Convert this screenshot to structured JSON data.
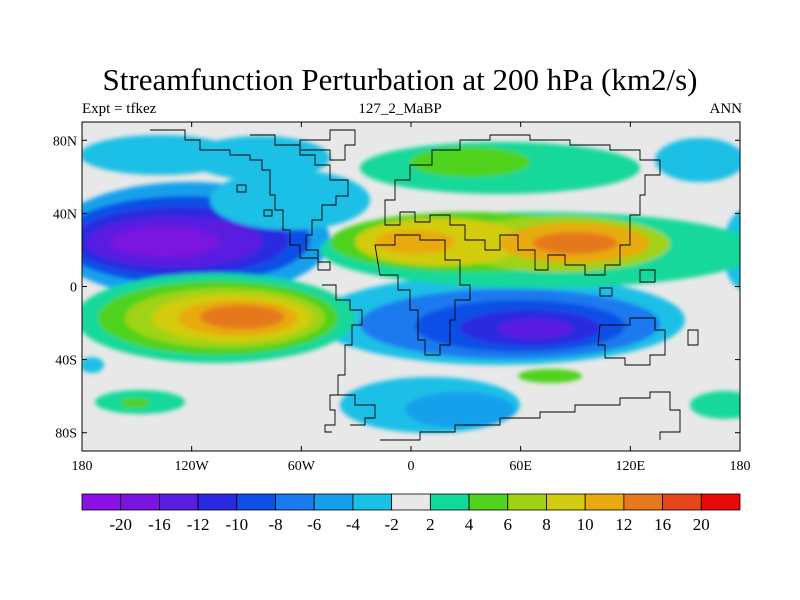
{
  "title": "Streamfunction Perturbation at 200 hPa (km2/s)",
  "subtitle_left": "Expt = tfkez",
  "subtitle_center": "127_2_MaBP",
  "subtitle_right": "ANN",
  "map": {
    "projection": "cylindrical equidistant",
    "lon_range": [
      -180,
      180
    ],
    "lat_range": [
      -90,
      90
    ],
    "background_color": "#e8e8e8",
    "x_ticks": [
      {
        "value": -180,
        "label": "180"
      },
      {
        "value": -120,
        "label": "120W"
      },
      {
        "value": -60,
        "label": "60W"
      },
      {
        "value": 0,
        "label": "0"
      },
      {
        "value": 60,
        "label": "60E"
      },
      {
        "value": 120,
        "label": "120E"
      },
      {
        "value": 180,
        "label": "180"
      }
    ],
    "y_ticks": [
      {
        "value": 80,
        "label": "80N"
      },
      {
        "value": 40,
        "label": "40N"
      },
      {
        "value": 0,
        "label": "0"
      },
      {
        "value": -40,
        "label": "40S"
      },
      {
        "value": -80,
        "label": "80S"
      }
    ]
  },
  "colorbar": {
    "colors": [
      "#8a10e6",
      "#7a14e0",
      "#5a1ce0",
      "#2a2ae0",
      "#1050e6",
      "#1a7aee",
      "#15a0ec",
      "#1ac0e6",
      "#e8e8e8",
      "#14d89a",
      "#50d21e",
      "#a0d214",
      "#d2cc10",
      "#e8aa10",
      "#e6781e",
      "#e6461c",
      "#e60a0a"
    ],
    "labels": [
      "-20",
      "-16",
      "-12",
      "-10",
      "-8",
      "-6",
      "-4",
      "-2",
      "2",
      "4",
      "6",
      "8",
      "10",
      "12",
      "16",
      "20"
    ]
  }
}
